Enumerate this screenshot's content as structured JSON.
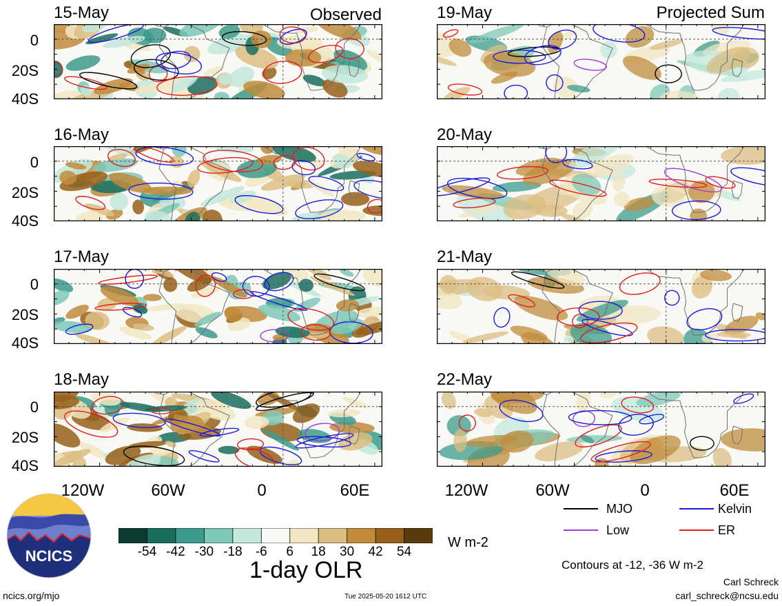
{
  "panels": {
    "left": [
      {
        "date": "15-May",
        "tag": "Observed"
      },
      {
        "date": "16-May",
        "tag": ""
      },
      {
        "date": "17-May",
        "tag": ""
      },
      {
        "date": "18-May",
        "tag": ""
      }
    ],
    "right": [
      {
        "date": "19-May",
        "tag": "Projected Sum"
      },
      {
        "date": "20-May",
        "tag": ""
      },
      {
        "date": "21-May",
        "tag": ""
      },
      {
        "date": "22-May",
        "tag": ""
      }
    ]
  },
  "lat_labels": [
    "0",
    "20S",
    "40S"
  ],
  "lon_labels": [
    "120W",
    "60W",
    "0",
    "60E"
  ],
  "legend": {
    "mjo": {
      "label": "MJO",
      "color": "#000000"
    },
    "kelvin": {
      "label": "Kelvin",
      "color": "#1a1adc"
    },
    "low": {
      "label": "Low",
      "color": "#a03cdc"
    },
    "er": {
      "label": "ER",
      "color": "#e01e1e"
    }
  },
  "colorbar": {
    "ticks": [
      "-54",
      "-42",
      "-30",
      "-18",
      "-6",
      "6",
      "18",
      "30",
      "42",
      "54"
    ],
    "colors": [
      "#0a3c32",
      "#196e5f",
      "#3c9b8c",
      "#7ec8b7",
      "#c3e8dc",
      "#f8f8f5",
      "#f2e6c3",
      "#dcbe82",
      "#c08c3c",
      "#96601a",
      "#5a3a0e"
    ],
    "unit": "W m-2",
    "title": "1-day OLR"
  },
  "contours_note": "Contours at -12, -36 W m-2",
  "author": "Carl Schreck",
  "email": "carl_schreck@ncsu.edu",
  "site": "ncics.org/mjo",
  "timestamp": "Tue 2025-05-20 1612 UTC",
  "logo_text": "NCICS"
}
